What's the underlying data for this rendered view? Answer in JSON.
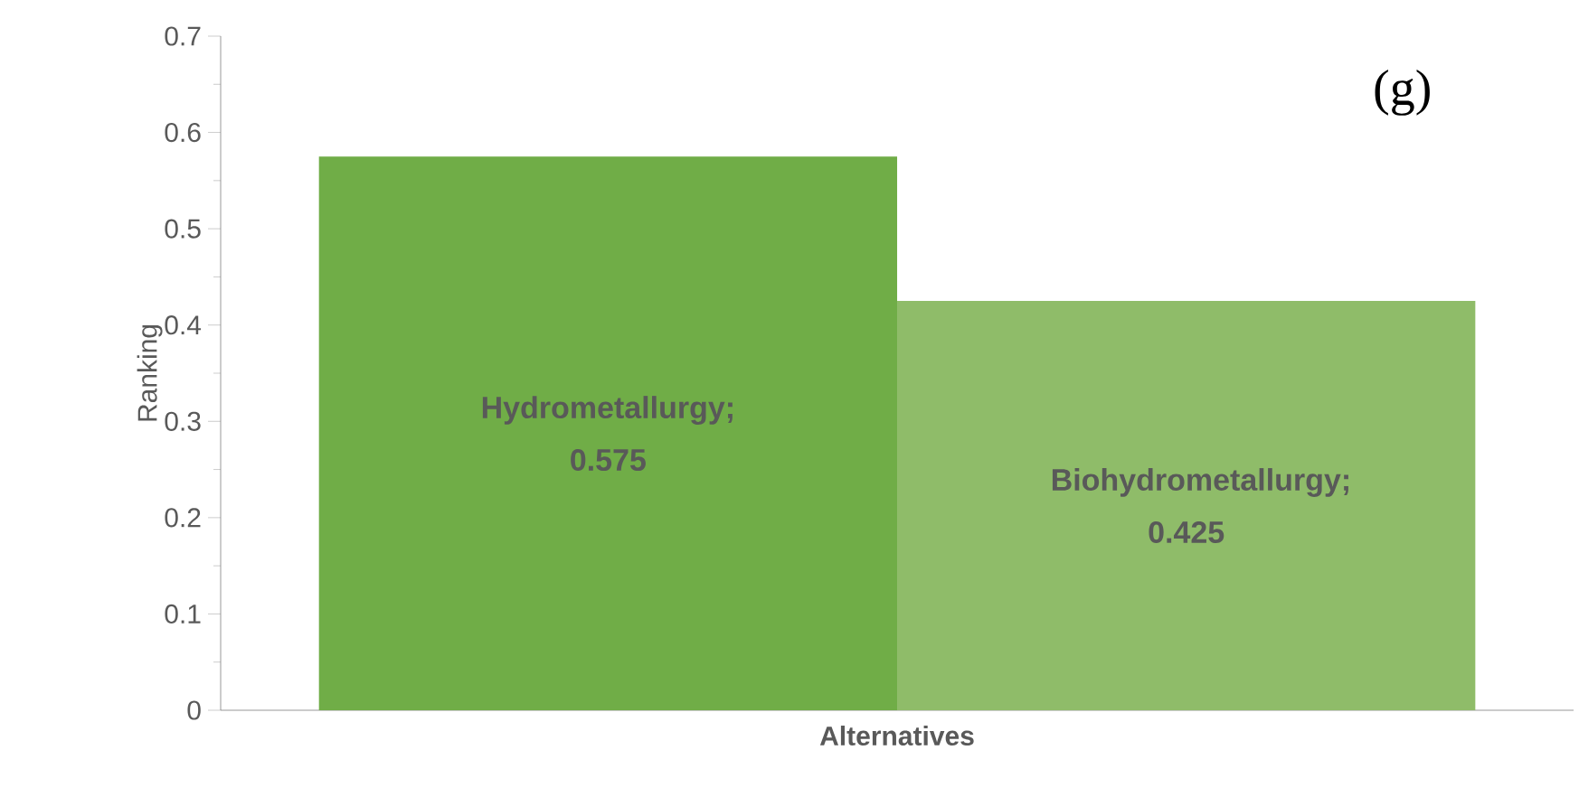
{
  "chart_data": {
    "type": "bar",
    "xlabel": "Alternatives",
    "ylabel": "Ranking",
    "categories": [
      null,
      null
    ],
    "values": [
      0.575,
      0.425
    ],
    "colors": [
      "#70ad47",
      "#8fbc69"
    ],
    "value_labels": [
      "Hydrometallurgy; 0.575",
      "Biohydrometallurgy; 0.425"
    ],
    "ylim": [
      0,
      0.7
    ],
    "yticks": [
      0,
      0.1,
      0.2,
      0.3,
      0.4,
      0.5,
      0.6,
      0.7
    ],
    "annotations": [
      "(g)"
    ],
    "grid": false
  }
}
